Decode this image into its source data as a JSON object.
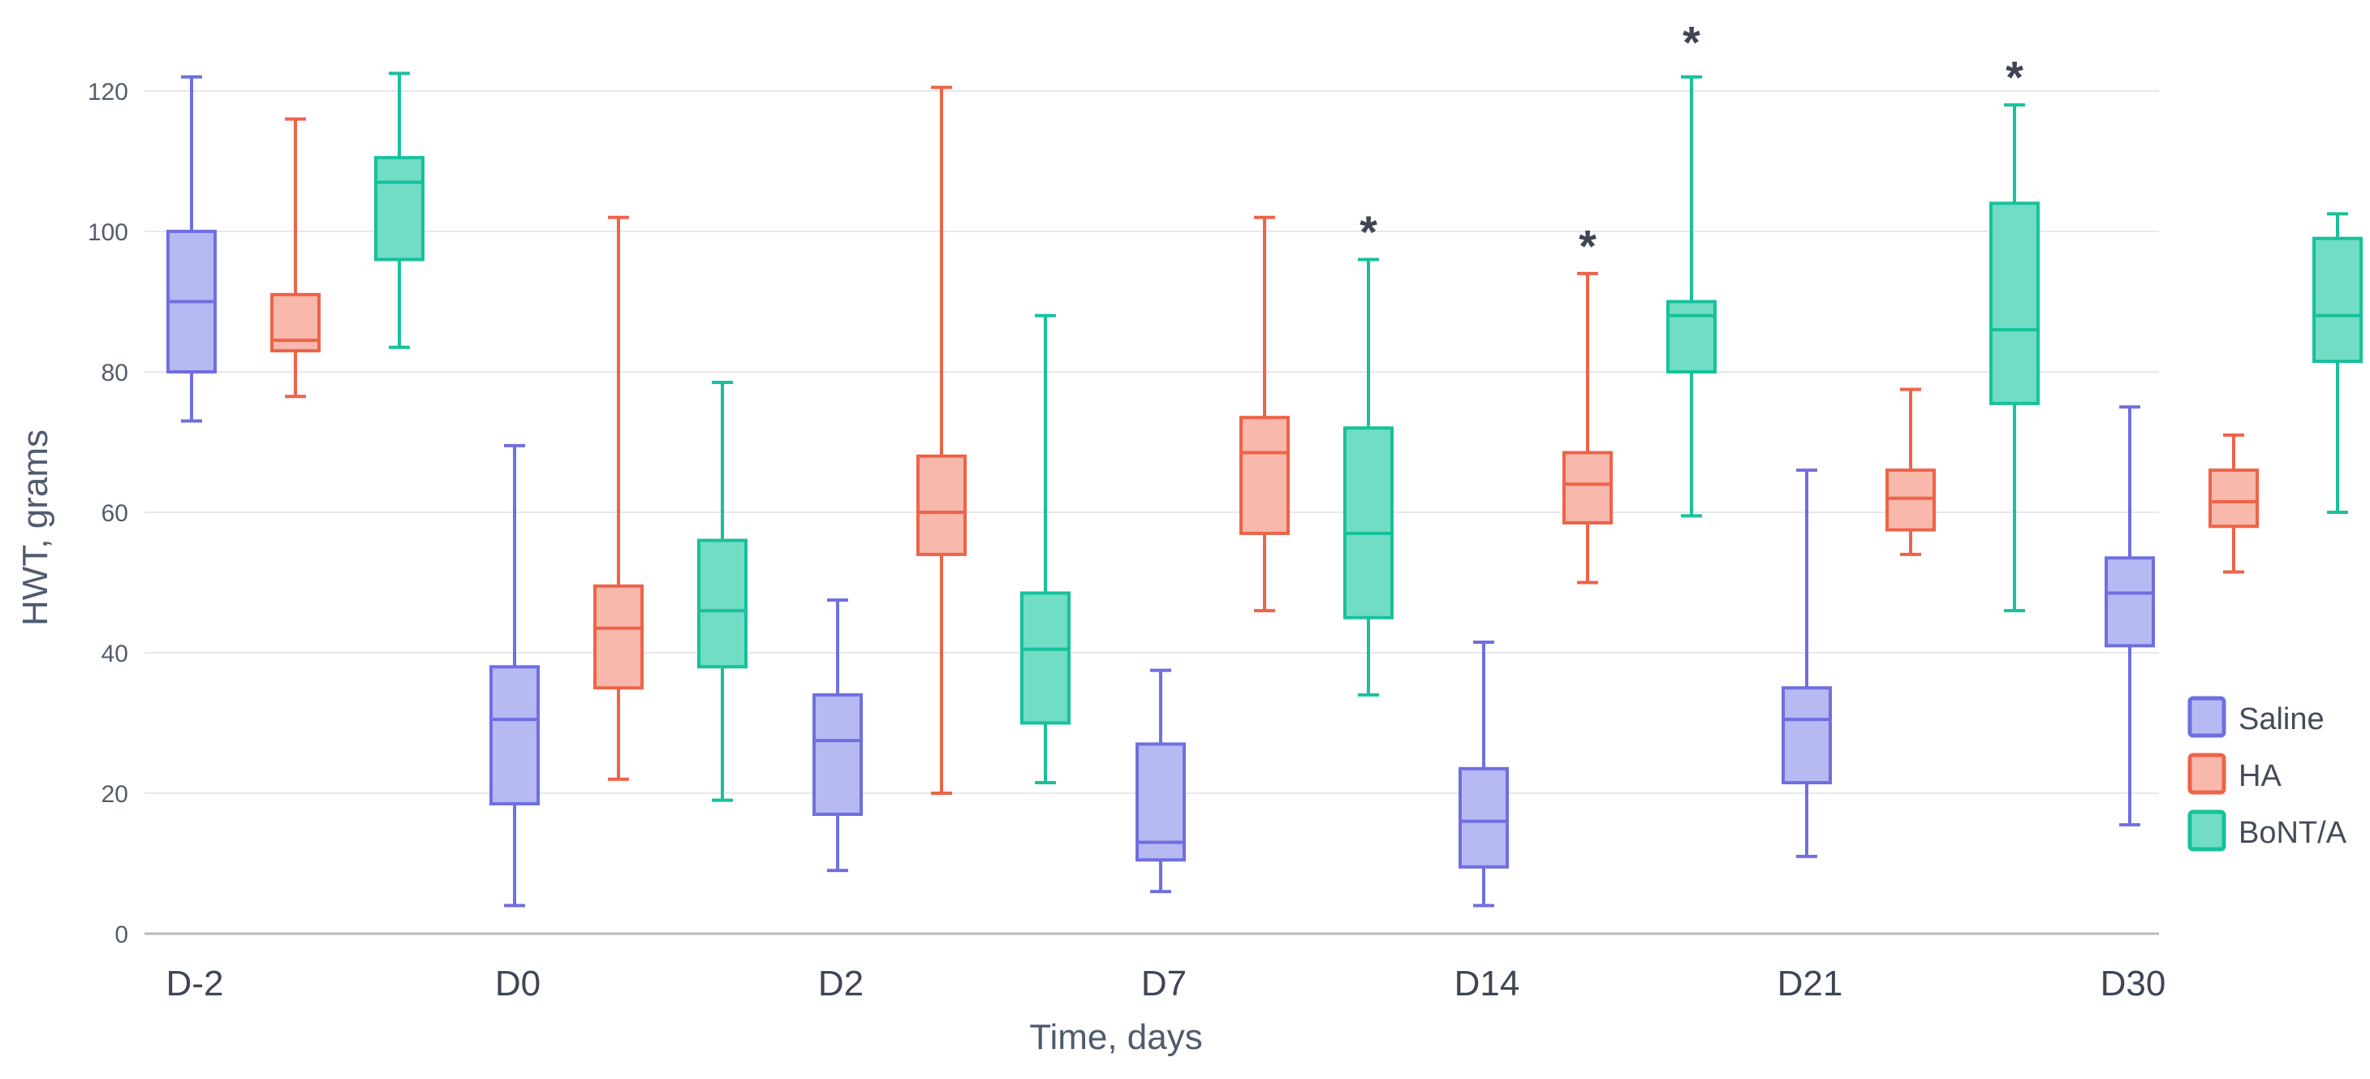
{
  "chart_data": {
    "type": "box",
    "ylabel": "HWT, grams",
    "xlabel": "Time, days",
    "ylim": [
      0,
      126
    ],
    "yticks": [
      "0",
      "20",
      "40",
      "60",
      "80",
      "100",
      "120"
    ],
    "grid": true,
    "legend_position": "right",
    "categories": [
      "D-2",
      "D0",
      "D2",
      "D7",
      "D14",
      "D21",
      "D30"
    ],
    "series": [
      {
        "name": "Saline",
        "color": "#6f6fe0",
        "fill": "#b7b9f3",
        "boxes": [
          {
            "min": 73,
            "q1": 80,
            "median": 90,
            "q3": 100,
            "max": 122
          },
          {
            "min": 4,
            "q1": 18.5,
            "median": 30.5,
            "q3": 38,
            "max": 69.5
          },
          {
            "min": 9,
            "q1": 17,
            "median": 27.5,
            "q3": 34,
            "max": 47.5
          },
          {
            "min": 6,
            "q1": 10.5,
            "median": 13,
            "q3": 27,
            "max": 37.5
          },
          {
            "min": 4,
            "q1": 9.5,
            "median": 16,
            "q3": 23.5,
            "max": 41.5
          },
          {
            "min": 11,
            "q1": 21.5,
            "median": 30.5,
            "q3": 35,
            "max": 66
          },
          {
            "min": 15.5,
            "q1": 41,
            "median": 48.5,
            "q3": 53.5,
            "max": 75
          }
        ]
      },
      {
        "name": "HA",
        "color": "#ee6349",
        "fill": "#f8b8ab",
        "boxes": [
          {
            "min": 76.5,
            "q1": 83,
            "median": 84.5,
            "q3": 91,
            "max": 116
          },
          {
            "min": 22,
            "q1": 35,
            "median": 43.5,
            "q3": 49.5,
            "max": 102
          },
          {
            "min": 20,
            "q1": 54,
            "median": 60,
            "q3": 68,
            "max": 120.5
          },
          {
            "min": 46,
            "q1": 57,
            "median": 68.5,
            "q3": 73.5,
            "max": 102
          },
          {
            "min": 50,
            "q1": 58.5,
            "median": 64,
            "q3": 68.5,
            "max": 94
          },
          {
            "min": 54,
            "q1": 57.5,
            "median": 62,
            "q3": 66,
            "max": 77.5
          },
          {
            "min": 51.5,
            "q1": 58,
            "median": 61.5,
            "q3": 66,
            "max": 71
          }
        ]
      },
      {
        "name": "BoNT/A",
        "color": "#17c19b",
        "fill": "#70ddc4",
        "boxes": [
          {
            "min": 83.5,
            "q1": 96,
            "median": 107,
            "q3": 110.5,
            "max": 122.5
          },
          {
            "min": 19,
            "q1": 38,
            "median": 46,
            "q3": 56,
            "max": 78.5
          },
          {
            "min": 21.5,
            "q1": 30,
            "median": 40.5,
            "q3": 48.5,
            "max": 88
          },
          {
            "min": 34,
            "q1": 45,
            "median": 57,
            "q3": 72,
            "max": 96
          },
          {
            "min": 59.5,
            "q1": 80,
            "median": 88,
            "q3": 90,
            "max": 122
          },
          {
            "min": 46,
            "q1": 75.5,
            "median": 86,
            "q3": 104,
            "max": 118
          },
          {
            "min": 60,
            "q1": 81.5,
            "median": 88,
            "q3": 99,
            "max": 102.5
          }
        ]
      }
    ],
    "annotations": [
      {
        "text": "*",
        "category": "D7",
        "series": "BoNT/A",
        "y": 100
      },
      {
        "text": "*",
        "category": "D14",
        "series": "HA",
        "y": 98
      },
      {
        "text": "*",
        "category": "D14",
        "series": "BoNT/A",
        "y": 127
      },
      {
        "text": "*",
        "category": "D21",
        "series": "BoNT/A",
        "y": 122
      }
    ]
  }
}
